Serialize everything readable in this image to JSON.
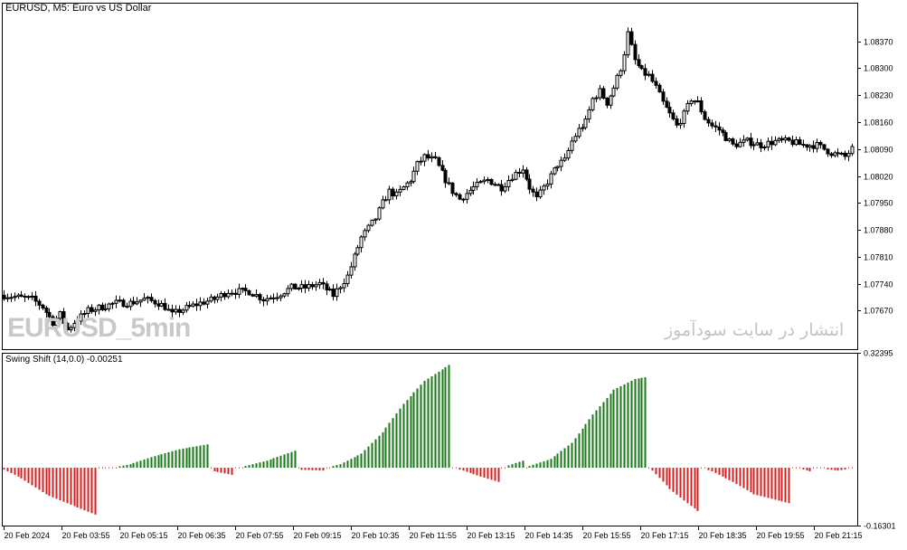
{
  "header": {
    "symbol_label": "EURUSD, M5:  Euro vs US Dollar",
    "indicator_label": "Swing Shift (14,0.0) -0.00251"
  },
  "watermarks": {
    "left": "EURUSD_5min",
    "right": "انتشار در سایت سودآموز"
  },
  "colors": {
    "background": "#ffffff",
    "axis": "#000000",
    "candle_up": "#ffffff",
    "candle_down": "#000000",
    "hist_up": "#1a7a1a",
    "hist_down": "#d42020",
    "zero_line": "#b00000"
  },
  "chart_data": [
    {
      "type": "candlestick",
      "title": "EURUSD, M5:  Euro vs US Dollar",
      "ylim": [
        1.0757,
        1.0847
      ],
      "y_ticks": [
        1.0767,
        1.0774,
        1.0781,
        1.0788,
        1.0795,
        1.0802,
        1.0809,
        1.0816,
        1.0823,
        1.083,
        1.0837
      ],
      "y_tick_labels": [
        "1.07670",
        "1.07740",
        "1.07810",
        "1.07880",
        "1.07950",
        "1.08020",
        "1.08090",
        "1.08160",
        "1.08230",
        "1.08300",
        "1.08370"
      ],
      "x_tick_labels": [
        "20 Feb 2024",
        "20 Feb 03:55",
        "20 Feb 05:15",
        "20 Feb 06:35",
        "20 Feb 07:55",
        "20 Feb 09:15",
        "20 Feb 10:35",
        "20 Feb 11:55",
        "20 Feb 13:15",
        "20 Feb 14:35",
        "20 Feb 15:55",
        "20 Feb 17:15",
        "20 Feb 18:35",
        "20 Feb 19:55",
        "20 Feb 21:15"
      ],
      "close_path": [
        [
          0,
          1.0771
        ],
        [
          8,
          1.077
        ],
        [
          11,
          1.0768
        ],
        [
          14,
          1.0764
        ],
        [
          16,
          1.0766
        ],
        [
          18,
          1.0762
        ],
        [
          20,
          1.0764
        ],
        [
          24,
          1.0767
        ],
        [
          28,
          1.0768
        ],
        [
          32,
          1.0769
        ],
        [
          36,
          1.0769
        ],
        [
          40,
          1.077
        ],
        [
          44,
          1.0769
        ],
        [
          46,
          1.0768
        ],
        [
          48,
          1.0766
        ],
        [
          50,
          1.0767
        ],
        [
          56,
          1.0769
        ],
        [
          60,
          1.077
        ],
        [
          64,
          1.0772
        ],
        [
          70,
          1.0772
        ],
        [
          74,
          1.077
        ],
        [
          78,
          1.0771
        ],
        [
          82,
          1.0773
        ],
        [
          86,
          1.0773
        ],
        [
          90,
          1.0774
        ],
        [
          94,
          1.0771
        ],
        [
          98,
          1.0776
        ],
        [
          100,
          1.0781
        ],
        [
          102,
          1.0786
        ],
        [
          106,
          1.0791
        ],
        [
          108,
          1.0795
        ],
        [
          110,
          1.0798
        ],
        [
          112,
          1.0797
        ],
        [
          114,
          1.0799
        ],
        [
          116,
          1.0801
        ],
        [
          118,
          1.0805
        ],
        [
          120,
          1.0807
        ],
        [
          123,
          1.0806
        ],
        [
          126,
          1.0801
        ],
        [
          128,
          1.0798
        ],
        [
          130,
          1.0796
        ],
        [
          134,
          1.0799
        ],
        [
          138,
          1.0801
        ],
        [
          142,
          1.0799
        ],
        [
          145,
          1.0802
        ],
        [
          148,
          1.0804
        ],
        [
          150,
          1.0799
        ],
        [
          152,
          1.0796
        ],
        [
          154,
          1.0799
        ],
        [
          156,
          1.0802
        ],
        [
          158,
          1.0805
        ],
        [
          160,
          1.0806
        ],
        [
          162,
          1.0811
        ],
        [
          164,
          1.0814
        ],
        [
          166,
          1.0816
        ],
        [
          168,
          1.0822
        ],
        [
          170,
          1.0824
        ],
        [
          172,
          1.0821
        ],
        [
          174,
          1.0825
        ],
        [
          176,
          1.083
        ],
        [
          177,
          1.0834
        ],
        [
          178,
          1.0839
        ],
        [
          180,
          1.0832
        ],
        [
          182,
          1.0829
        ],
        [
          184,
          1.0828
        ],
        [
          186,
          1.0825
        ],
        [
          188,
          1.0821
        ],
        [
          190,
          1.0818
        ],
        [
          192,
          1.0815
        ],
        [
          194,
          1.0818
        ],
        [
          196,
          1.0822
        ],
        [
          198,
          1.0821
        ],
        [
          200,
          1.0817
        ],
        [
          202,
          1.0815
        ],
        [
          204,
          1.0814
        ],
        [
          206,
          1.0812
        ],
        [
          208,
          1.081
        ],
        [
          212,
          1.0811
        ],
        [
          216,
          1.081
        ],
        [
          220,
          1.0811
        ],
        [
          224,
          1.0811
        ],
        [
          228,
          1.081
        ],
        [
          232,
          1.081
        ],
        [
          236,
          1.0808
        ],
        [
          240,
          1.0807
        ],
        [
          242,
          1.0809
        ]
      ]
    },
    {
      "type": "bar",
      "title": "Swing Shift (14,0.0) -0.00251",
      "ylim": [
        -0.16301,
        0.32395
      ],
      "y_tick_labels": [
        "0.32395",
        "-0.16301"
      ],
      "last_value": -0.00251,
      "profile": [
        [
          0,
          -0.005
        ],
        [
          5,
          -0.03
        ],
        [
          12,
          -0.075
        ],
        [
          18,
          -0.1
        ],
        [
          26,
          -0.132
        ],
        [
          27,
          0
        ],
        [
          31,
          0.0
        ],
        [
          36,
          0.01
        ],
        [
          42,
          0.03
        ],
        [
          50,
          0.052
        ],
        [
          58,
          0.066
        ],
        [
          59,
          0
        ],
        [
          60,
          -0.01
        ],
        [
          65,
          -0.02
        ],
        [
          66,
          0
        ],
        [
          69,
          0.005
        ],
        [
          75,
          0.02
        ],
        [
          83,
          0.048
        ],
        [
          84,
          0
        ],
        [
          85,
          -0.006
        ],
        [
          91,
          -0.008
        ],
        [
          92,
          0
        ],
        [
          96,
          0.01
        ],
        [
          102,
          0.04
        ],
        [
          108,
          0.1
        ],
        [
          114,
          0.18
        ],
        [
          120,
          0.245
        ],
        [
          127,
          0.29
        ],
        [
          128,
          0
        ],
        [
          131,
          -0.008
        ],
        [
          136,
          -0.025
        ],
        [
          141,
          -0.04
        ],
        [
          142,
          0
        ],
        [
          145,
          0.01
        ],
        [
          148,
          0.02
        ],
        [
          149,
          0
        ],
        [
          150,
          0.005
        ],
        [
          156,
          0.025
        ],
        [
          162,
          0.07
        ],
        [
          168,
          0.15
        ],
        [
          174,
          0.22
        ],
        [
          180,
          0.25
        ],
        [
          183,
          0.255
        ],
        [
          184,
          0
        ],
        [
          185,
          -0.008
        ],
        [
          190,
          -0.06
        ],
        [
          195,
          -0.1
        ],
        [
          198,
          -0.122
        ],
        [
          199,
          0
        ],
        [
          202,
          -0.01
        ],
        [
          208,
          -0.04
        ],
        [
          214,
          -0.075
        ],
        [
          220,
          -0.09
        ],
        [
          224,
          -0.1
        ],
        [
          225,
          0
        ],
        [
          228,
          -0.005
        ],
        [
          230,
          -0.01
        ],
        [
          231,
          0
        ],
        [
          238,
          -0.008
        ],
        [
          242,
          -0.002
        ]
      ]
    }
  ]
}
